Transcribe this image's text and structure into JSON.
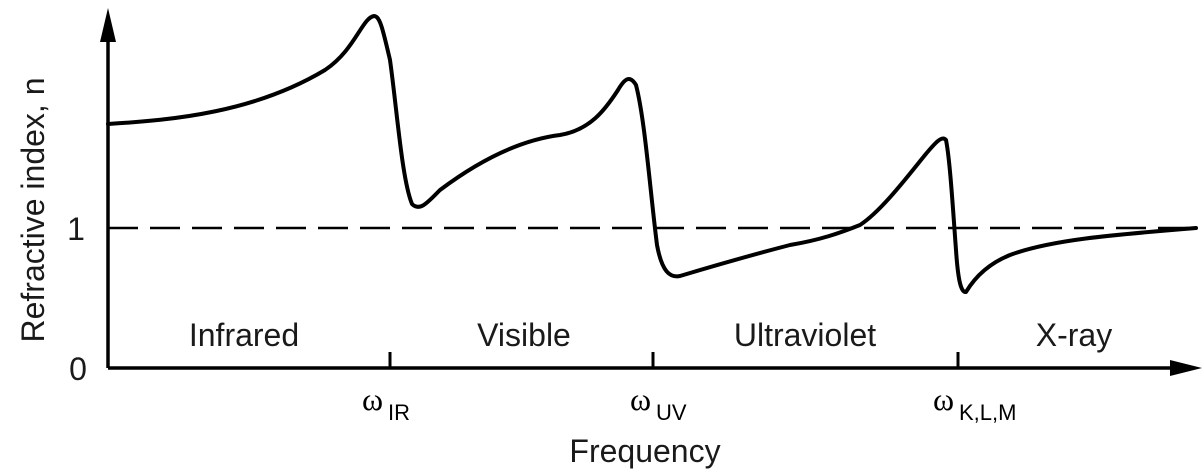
{
  "axes": {
    "y_label": "Refractive index, n",
    "x_label": "Frequency",
    "y_ticks": [
      "1",
      "0"
    ]
  },
  "regions": [
    "Infrared",
    "Visible",
    "Ultraviolet",
    "X-ray"
  ],
  "resonances": [
    {
      "symbol": "ω",
      "subscript": "IR"
    },
    {
      "symbol": "ω",
      "subscript": "UV"
    },
    {
      "symbol": "ω",
      "subscript": "K,L,M"
    }
  ],
  "colors": {
    "ink": "#000000",
    "text": "#1a1a1a"
  }
}
